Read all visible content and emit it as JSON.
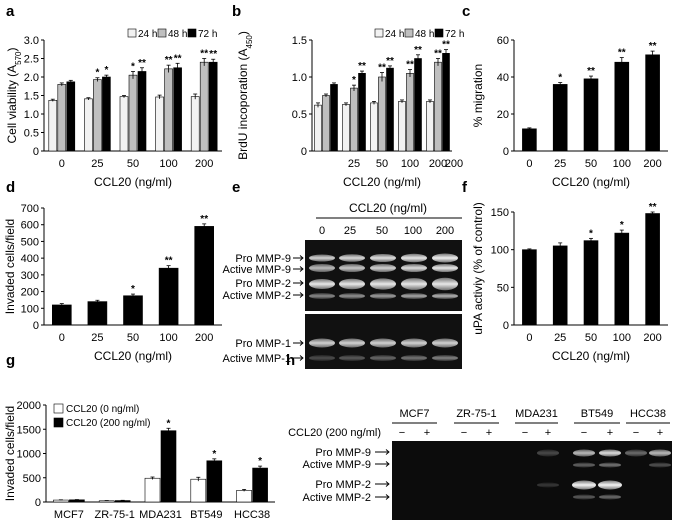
{
  "colors": {
    "24h": "#f2f2f2",
    "48h": "#bfbfbf",
    "72h": "#000000",
    "single": "#000000",
    "ccl20_0": "#ffffff",
    "ccl20_200": "#000000"
  },
  "chart_data": [
    {
      "panel": "a",
      "type": "bar",
      "xlabel": "CCL20 (ng/ml)",
      "ylabel": "Cell viability (A570)",
      "ylim": [
        0,
        3.0
      ],
      "yticks": [
        "0",
        "0.5",
        "1.0",
        "1.5",
        "2.0",
        "2.5",
        "3.0"
      ],
      "categories": [
        "0",
        "25",
        "50",
        "100",
        "200"
      ],
      "legend_position": "top-right",
      "series": [
        {
          "name": "24 h",
          "values": [
            1.37,
            1.41,
            1.47,
            1.46,
            1.47
          ],
          "errors": [
            0.03,
            0.03,
            0.03,
            0.05,
            0.07
          ]
        },
        {
          "name": "48 h",
          "values": [
            1.8,
            1.93,
            2.05,
            2.22,
            2.4
          ],
          "errors": [
            0.04,
            0.05,
            0.1,
            0.1,
            0.1
          ]
        },
        {
          "name": "72 h",
          "values": [
            1.87,
            2.0,
            2.15,
            2.25,
            2.4
          ],
          "errors": [
            0.04,
            0.05,
            0.1,
            0.12,
            0.08
          ]
        }
      ],
      "significance": [
        [
          "",
          "",
          ""
        ],
        [
          "",
          "*",
          "*"
        ],
        [
          "",
          "*",
          "**"
        ],
        [
          "",
          "**",
          "**"
        ],
        [
          "",
          "**",
          "**"
        ]
      ]
    },
    {
      "panel": "b",
      "type": "bar",
      "xlabel": "CCL20 (ng/ml)",
      "ylabel": "BrdU incoporation (A450)",
      "ylim": [
        0,
        1.5
      ],
      "yticks": [
        "0",
        "0.5",
        "1.0",
        "1.5"
      ],
      "categories": [
        "",
        "25",
        "50",
        "100",
        "200"
      ],
      "legend_position": "top-right",
      "series": [
        {
          "name": "24 h",
          "values": [
            0.62,
            0.63,
            0.65,
            0.67,
            0.67
          ],
          "errors": [
            0.03,
            0.02,
            0.02,
            0.02,
            0.02
          ]
        },
        {
          "name": "48 h",
          "values": [
            0.75,
            0.85,
            1.0,
            1.05,
            1.2
          ],
          "errors": [
            0.02,
            0.04,
            0.06,
            0.05,
            0.05
          ]
        },
        {
          "name": "72 h",
          "values": [
            0.9,
            1.05,
            1.12,
            1.25,
            1.32
          ],
          "errors": [
            0.02,
            0.03,
            0.03,
            0.05,
            0.05
          ]
        }
      ],
      "significance": [
        [
          "",
          "",
          ""
        ],
        [
          "",
          "*",
          "**"
        ],
        [
          "",
          "**",
          "**"
        ],
        [
          "",
          "**",
          "**"
        ],
        [
          "",
          "**",
          "**"
        ]
      ]
    },
    {
      "panel": "c",
      "type": "bar",
      "xlabel": "CCL20 (ng/ml)",
      "ylabel": "% migration",
      "ylim": [
        0,
        60
      ],
      "yticks": [
        "0",
        "20",
        "40",
        "60"
      ],
      "categories": [
        "0",
        "25",
        "50",
        "100",
        "200"
      ],
      "values": [
        12,
        36,
        39,
        48,
        52
      ],
      "errors": [
        0.5,
        1,
        1.5,
        2.5,
        2
      ],
      "significance": [
        "",
        "*",
        "**",
        "**",
        "**"
      ]
    },
    {
      "panel": "d",
      "type": "bar",
      "xlabel": "CCL20 (ng/ml)",
      "ylabel": "Invaded cells/field",
      "ylim": [
        0,
        700
      ],
      "yticks": [
        "0",
        "100",
        "200",
        "300",
        "400",
        "500",
        "600",
        "700"
      ],
      "categories": [
        "0",
        "25",
        "50",
        "100",
        "200"
      ],
      "values": [
        120,
        140,
        175,
        340,
        590
      ],
      "errors": [
        8,
        8,
        10,
        15,
        15
      ],
      "significance": [
        "",
        "",
        "*",
        "**",
        "**"
      ]
    },
    {
      "panel": "f",
      "type": "bar",
      "xlabel": "CCL20 (ng/ml)",
      "ylabel": "uPA activiy (% of control)",
      "ylim": [
        0,
        150
      ],
      "yticks": [
        "0",
        "50",
        "100",
        "150"
      ],
      "categories": [
        "0",
        "25",
        "50",
        "100",
        "200"
      ],
      "values": [
        100,
        105,
        112,
        122,
        148
      ],
      "errors": [
        1,
        4,
        3,
        4,
        2
      ],
      "significance": [
        "",
        "",
        "*",
        "*",
        "**"
      ]
    },
    {
      "panel": "g",
      "type": "bar",
      "xlabel": "",
      "ylabel": "Invaded cells/field",
      "ylim": [
        0,
        2000
      ],
      "yticks": [
        "0",
        "500",
        "1000",
        "1500",
        "2000"
      ],
      "categories": [
        "MCF7",
        "ZR-75-1",
        "MDA231",
        "BT549",
        "HCC38"
      ],
      "legend_position": "top-left",
      "series": [
        {
          "name": "CCL20 (0 ng/ml)",
          "values": [
            40,
            25,
            490,
            470,
            240
          ],
          "errors": [
            5,
            5,
            25,
            40,
            20
          ]
        },
        {
          "name": "CCL20 (200 ng/ml)",
          "values": [
            45,
            30,
            1470,
            850,
            700
          ],
          "errors": [
            5,
            5,
            50,
            40,
            40
          ]
        }
      ],
      "significance": [
        [
          "",
          ""
        ],
        [
          "",
          ""
        ],
        [
          "",
          "*"
        ],
        [
          "",
          "*"
        ],
        [
          "",
          "*"
        ]
      ]
    }
  ],
  "panels": {
    "a": {
      "letter": "a"
    },
    "b": {
      "letter": "b"
    },
    "c": {
      "letter": "c"
    },
    "d": {
      "letter": "d"
    },
    "e": {
      "letter": "e",
      "header": "CCL20 (ng/ml)",
      "lanes": [
        "0",
        "25",
        "50",
        "100",
        "200"
      ],
      "labels_top": [
        "Pro MMP-9",
        "Active MMP-9",
        "Pro MMP-2",
        "Active MMP-2"
      ],
      "labels_bottom": [
        "Pro MMP-1",
        "Active MMP-1"
      ]
    },
    "f": {
      "letter": "f"
    },
    "g": {
      "letter": "g"
    },
    "h": {
      "letter": "h",
      "cell_lines": [
        "MCF7",
        "ZR-75-1",
        "MDA231",
        "BT549",
        "HCC38"
      ],
      "treatment_label": "CCL20 (200 ng/ml)",
      "minus": "−",
      "plus": "+",
      "labels": [
        "Pro MMP-9",
        "Active MMP-9",
        "Pro MMP-2",
        "Active MMP-2"
      ]
    }
  }
}
